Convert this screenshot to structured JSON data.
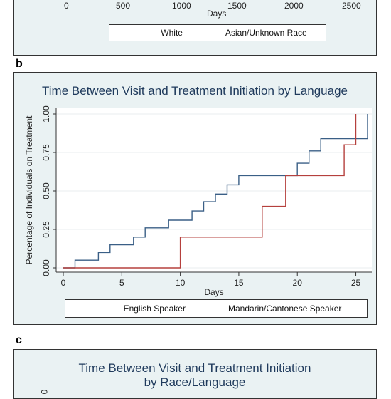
{
  "panel_labels": {
    "b": "b",
    "c": "c"
  },
  "panel_a": {
    "x_ticks": [
      "0",
      "500",
      "1000",
      "1500",
      "2000",
      "2500"
    ],
    "xlabel": "Days",
    "legend": [
      "White",
      "Asian/Unknown Race"
    ]
  },
  "panel_c": {
    "title_line1": "Time Between Visit and Treatment Initiation",
    "title_line2": "by Race/Language",
    "y_tick_partial": "0"
  },
  "colors": {
    "series1": "#3a5f86",
    "series2": "#b5403d"
  },
  "chart_data": [
    {
      "type": "line",
      "title": "Time Between Visit and Treatment Initiation by Language",
      "xlabel": "Days",
      "ylabel": "Percentage of Individuals on Treatment",
      "xlim": [
        0,
        26
      ],
      "ylim": [
        0,
        1
      ],
      "x_ticks": [
        0,
        5,
        10,
        15,
        20,
        25
      ],
      "y_ticks": [
        "0.00",
        "0.25",
        "0.50",
        "0.75",
        "1.00"
      ],
      "grid": true,
      "legend_position": "bottom",
      "series": [
        {
          "name": "English Speaker",
          "step": true,
          "points": [
            [
              0,
              0
            ],
            [
              1,
              0
            ],
            [
              1,
              0.05
            ],
            [
              3,
              0.05
            ],
            [
              3,
              0.1
            ],
            [
              4,
              0.1
            ],
            [
              4,
              0.15
            ],
            [
              6,
              0.15
            ],
            [
              6,
              0.2
            ],
            [
              7,
              0.2
            ],
            [
              7,
              0.26
            ],
            [
              9,
              0.26
            ],
            [
              9,
              0.31
            ],
            [
              11,
              0.31
            ],
            [
              11,
              0.37
            ],
            [
              12,
              0.37
            ],
            [
              12,
              0.43
            ],
            [
              13,
              0.43
            ],
            [
              13,
              0.48
            ],
            [
              14,
              0.48
            ],
            [
              14,
              0.54
            ],
            [
              15,
              0.54
            ],
            [
              15,
              0.6
            ],
            [
              20,
              0.6
            ],
            [
              20,
              0.68
            ],
            [
              21,
              0.68
            ],
            [
              21,
              0.76
            ],
            [
              22,
              0.76
            ],
            [
              22,
              0.84
            ],
            [
              26,
              0.84
            ],
            [
              26,
              1.0
            ]
          ]
        },
        {
          "name": "Mandarin/Cantonese Speaker",
          "step": true,
          "points": [
            [
              0,
              0
            ],
            [
              10,
              0
            ],
            [
              10,
              0.2
            ],
            [
              17,
              0.2
            ],
            [
              17,
              0.4
            ],
            [
              19,
              0.4
            ],
            [
              19,
              0.6
            ],
            [
              24,
              0.6
            ],
            [
              24,
              0.8
            ],
            [
              25,
              0.8
            ],
            [
              25,
              1.0
            ]
          ]
        }
      ]
    }
  ]
}
